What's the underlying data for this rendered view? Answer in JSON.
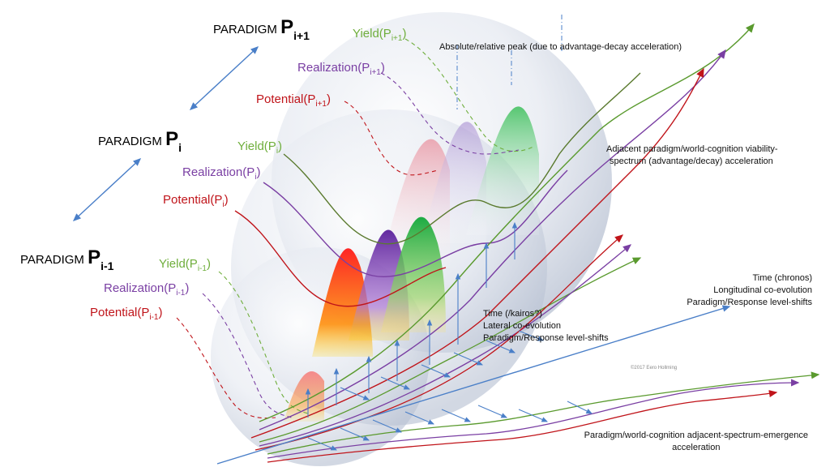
{
  "paradigms": [
    {
      "prefix": "PARADIGM",
      "letter": "P",
      "sub": "i+1"
    },
    {
      "prefix": "PARADIGM",
      "letter": "P",
      "sub": "i"
    },
    {
      "prefix": "PARADIGM",
      "letter": "P",
      "sub": "i-1"
    }
  ],
  "curve_labels": {
    "upper": {
      "yield": "Yield(P",
      "realization": "Realization(P",
      "potential": "Potential(P",
      "sub": "i+1",
      "close": ")"
    },
    "middle": {
      "yield": "Yield(P",
      "realization": "Realization(P",
      "potential": "Potential(P",
      "sub": "i",
      "close": ")"
    },
    "lower": {
      "yield": "Yield(P",
      "realization": "Realization(P",
      "potential": "Potential(P",
      "sub": "i-1",
      "close": ")"
    }
  },
  "annotations": {
    "peak": "Absolute/relative peak (due to advantage-decay acceleration)",
    "adjacent_1": "Adjacent paradigm/world-cognition viability-",
    "adjacent_2": "spectrum  (advantage/decay) acceleration",
    "chronos_1": "Time (chronos)",
    "chronos_2": "Longitudinal co-evolution",
    "chronos_3": "Paradigm/Response level-shifts",
    "kairos_1": "Time (/kairos?)",
    "kairos_2": "Lateral co-evolution",
    "kairos_3": "Paradigm/Response level-shifts",
    "emergence_1": "Paradigm/world-cognition adjacent-spectrum-emergence",
    "emergence_2": "acceleration",
    "copyright": "©2017 Eero Hollming"
  },
  "colors": {
    "potential": "#c0141a",
    "realization": "#7a3fa3",
    "yield": "#6fae3c",
    "axis": "#4a7fc8"
  }
}
